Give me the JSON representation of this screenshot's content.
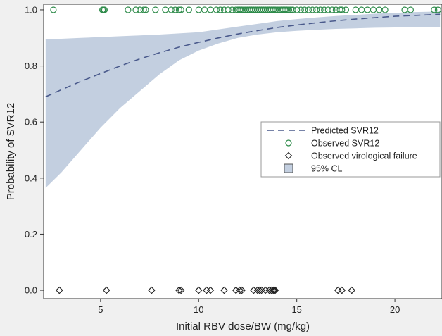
{
  "chart_data": {
    "type": "scatter",
    "xlabel": "Initial RBV dose/BW (mg/kg)",
    "ylabel": "Probability of SVR12",
    "xlim": [
      2.1,
      22.4
    ],
    "ylim": [
      -0.03,
      1.02
    ],
    "xticks": [
      5,
      10,
      15,
      20
    ],
    "yticks": [
      0.0,
      0.2,
      0.4,
      0.6,
      0.8,
      1.0
    ],
    "ytick_labels": [
      "0.0",
      "0.2",
      "0.4",
      "0.6",
      "0.8",
      "1.0"
    ],
    "grid": false,
    "legend_position": "center-right",
    "colors": {
      "predicted": "#4a5a8c",
      "observed_svr": "#2e8b4a",
      "failure": "#222222",
      "ci_band": "#c3cfe0",
      "plot_bg": "#ffffff",
      "page_bg": "#f0f0f0"
    },
    "legend": [
      {
        "label": "Predicted SVR12",
        "kind": "dashed-line"
      },
      {
        "label": "Observed SVR12",
        "kind": "circle"
      },
      {
        "label": "Observed virological failure",
        "kind": "diamond"
      },
      {
        "label": "95% CL",
        "kind": "band"
      }
    ],
    "series": [
      {
        "name": "Predicted SVR12",
        "x": [
          2.2,
          3,
          4,
          5,
          6,
          7,
          8,
          9,
          10,
          11,
          12,
          13,
          14,
          15,
          16,
          17,
          18,
          19,
          20,
          21,
          22.3
        ],
        "y": [
          0.69,
          0.715,
          0.745,
          0.773,
          0.8,
          0.825,
          0.847,
          0.867,
          0.884,
          0.9,
          0.914,
          0.926,
          0.937,
          0.946,
          0.954,
          0.961,
          0.967,
          0.972,
          0.977,
          0.98,
          0.984
        ]
      },
      {
        "name": "95% CL",
        "x": [
          2.2,
          3,
          4,
          5,
          6,
          7,
          8,
          9,
          10,
          11,
          12,
          13,
          14,
          15,
          16,
          17,
          18,
          19,
          20,
          21,
          22.3
        ],
        "lower": [
          0.365,
          0.42,
          0.5,
          0.58,
          0.65,
          0.71,
          0.77,
          0.82,
          0.855,
          0.88,
          0.9,
          0.912,
          0.92,
          0.925,
          0.929,
          0.932,
          0.934,
          0.936,
          0.937,
          0.938,
          0.939
        ],
        "upper": [
          0.895,
          0.897,
          0.9,
          0.903,
          0.906,
          0.909,
          0.912,
          0.916,
          0.92,
          0.93,
          0.94,
          0.95,
          0.96,
          0.967,
          0.973,
          0.978,
          0.982,
          0.986,
          0.989,
          0.992,
          0.994
        ]
      },
      {
        "name": "Observed SVR12",
        "y": 1.0,
        "x": [
          2.6,
          5.1,
          5.15,
          5.2,
          6.4,
          6.8,
          7.0,
          7.2,
          7.3,
          7.8,
          8.3,
          8.6,
          8.8,
          9.0,
          9.1,
          9.5,
          10.0,
          10.3,
          10.6,
          10.9,
          11.1,
          11.3,
          11.5,
          11.7,
          11.9,
          12.0,
          12.1,
          12.2,
          12.3,
          12.4,
          12.5,
          12.6,
          12.7,
          12.8,
          12.9,
          13.0,
          13.1,
          13.2,
          13.3,
          13.4,
          13.5,
          13.6,
          13.7,
          13.8,
          13.9,
          14.0,
          14.1,
          14.2,
          14.3,
          14.4,
          14.5,
          14.6,
          14.7,
          14.8,
          15.0,
          15.2,
          15.4,
          15.6,
          15.8,
          16.0,
          16.2,
          16.4,
          16.6,
          16.8,
          17.0,
          17.2,
          17.3,
          17.5,
          18.0,
          18.3,
          18.6,
          18.9,
          19.2,
          19.5,
          20.5,
          20.8,
          22.0,
          22.2
        ]
      },
      {
        "name": "Observed virological failure",
        "y": 0.0,
        "x": [
          2.9,
          5.3,
          7.6,
          9.0,
          9.1,
          10.0,
          10.4,
          10.6,
          11.3,
          11.9,
          12.1,
          12.2,
          12.8,
          13.0,
          13.1,
          13.2,
          13.4,
          13.6,
          13.7,
          13.8,
          13.85,
          13.9,
          17.1,
          17.3,
          17.8
        ]
      }
    ]
  }
}
